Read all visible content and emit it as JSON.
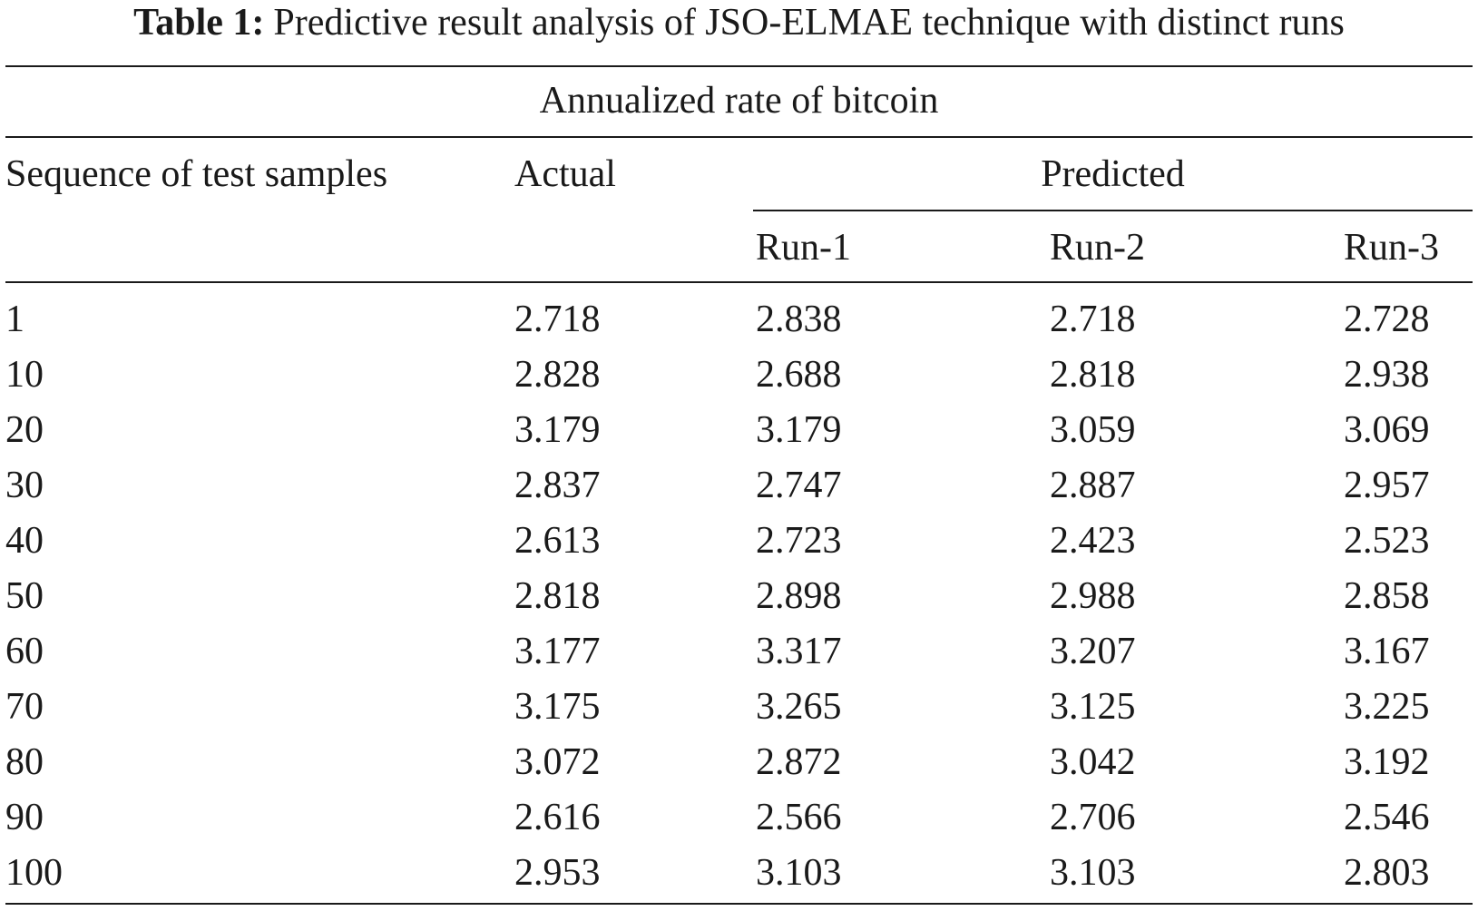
{
  "caption": {
    "label": "Table 1:",
    "text": "Predictive result analysis of JSO-ELMAE technique with distinct runs"
  },
  "table": {
    "group_header": "Annualized rate of bitcoin",
    "columns": {
      "sequence": "Sequence of test samples",
      "actual": "Actual",
      "predicted": "Predicted",
      "runs": [
        "Run-1",
        "Run-2",
        "Run-3"
      ]
    },
    "rows": [
      {
        "seq": "1",
        "actual": "2.718",
        "run1": "2.838",
        "run2": "2.718",
        "run3": "2.728"
      },
      {
        "seq": "10",
        "actual": "2.828",
        "run1": "2.688",
        "run2": "2.818",
        "run3": "2.938"
      },
      {
        "seq": "20",
        "actual": "3.179",
        "run1": "3.179",
        "run2": "3.059",
        "run3": "3.069"
      },
      {
        "seq": "30",
        "actual": "2.837",
        "run1": "2.747",
        "run2": "2.887",
        "run3": "2.957"
      },
      {
        "seq": "40",
        "actual": "2.613",
        "run1": "2.723",
        "run2": "2.423",
        "run3": "2.523"
      },
      {
        "seq": "50",
        "actual": "2.818",
        "run1": "2.898",
        "run2": "2.988",
        "run3": "2.858"
      },
      {
        "seq": "60",
        "actual": "3.177",
        "run1": "3.317",
        "run2": "3.207",
        "run3": "3.167"
      },
      {
        "seq": "70",
        "actual": "3.175",
        "run1": "3.265",
        "run2": "3.125",
        "run3": "3.225"
      },
      {
        "seq": "80",
        "actual": "3.072",
        "run1": "2.872",
        "run2": "3.042",
        "run3": "3.192"
      },
      {
        "seq": "90",
        "actual": "2.616",
        "run1": "2.566",
        "run2": "2.706",
        "run3": "2.546"
      },
      {
        "seq": "100",
        "actual": "2.953",
        "run1": "3.103",
        "run2": "3.103",
        "run3": "2.803"
      }
    ]
  }
}
